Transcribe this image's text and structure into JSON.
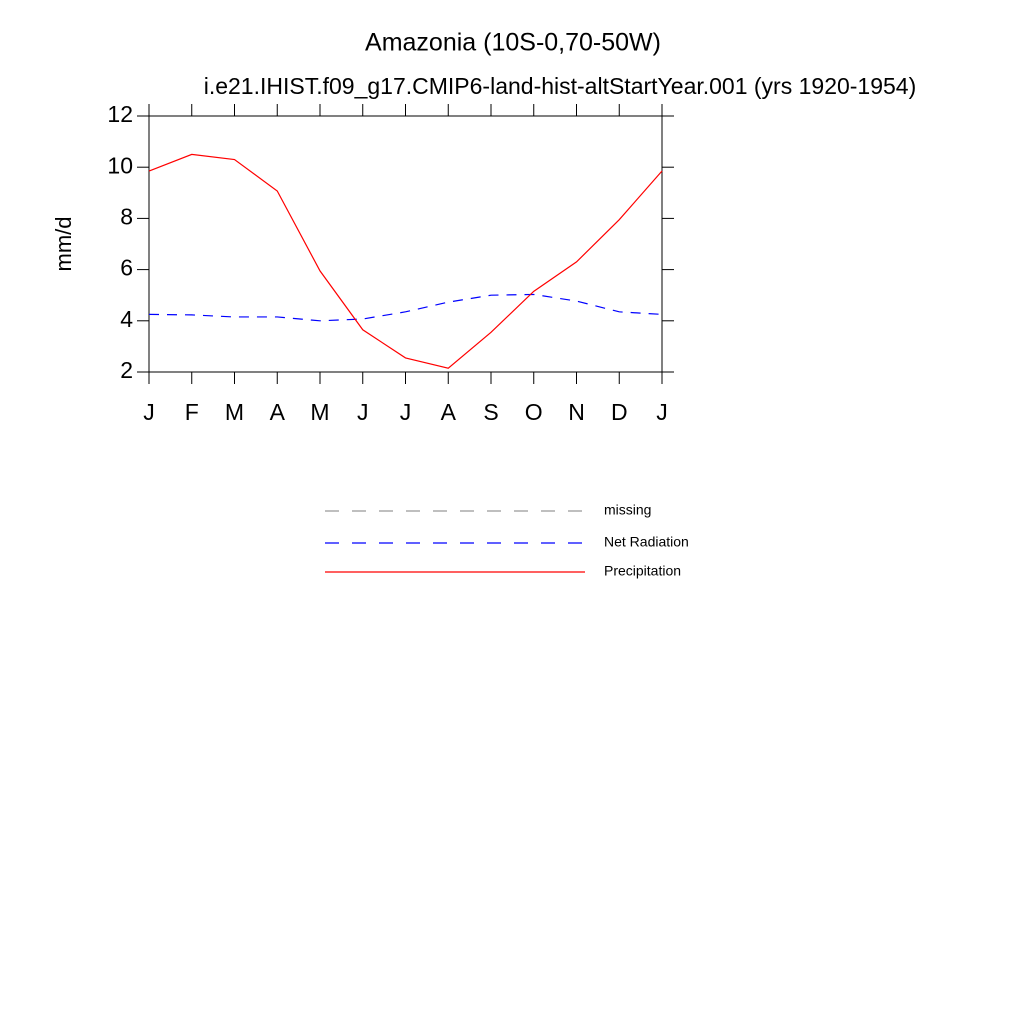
{
  "chart_data": {
    "type": "line",
    "title": "Amazonia (10S-0,70-50W)",
    "subtitle": "i.e21.IHIST.f09_g17.CMIP6-land-hist-altStartYear.001 (yrs 1920-1954)",
    "y_label": "mm/d",
    "categories": [
      "J",
      "F",
      "M",
      "A",
      "M",
      "J",
      "J",
      "A",
      "S",
      "O",
      "N",
      "D",
      "J"
    ],
    "series": [
      {
        "name": "missing",
        "color": "#999999",
        "dash": true,
        "values": [
          null,
          null,
          null,
          null,
          null,
          null,
          null,
          null,
          null,
          null,
          null,
          null,
          null
        ]
      },
      {
        "name": "Net Radiation",
        "color": "#0000ff",
        "dash": true,
        "values": [
          4.25,
          4.23,
          4.15,
          4.15,
          4.0,
          4.07,
          4.35,
          4.73,
          5.0,
          5.03,
          4.77,
          4.35,
          4.25
        ]
      },
      {
        "name": "Precipitation",
        "color": "#ff0000",
        "dash": false,
        "values": [
          9.85,
          10.5,
          10.3,
          9.07,
          5.95,
          3.65,
          2.55,
          2.15,
          3.55,
          5.15,
          6.3,
          7.95,
          9.85
        ]
      }
    ],
    "ylim": [
      2,
      12
    ],
    "yticks": [
      2,
      4,
      6,
      8,
      10,
      12
    ]
  }
}
